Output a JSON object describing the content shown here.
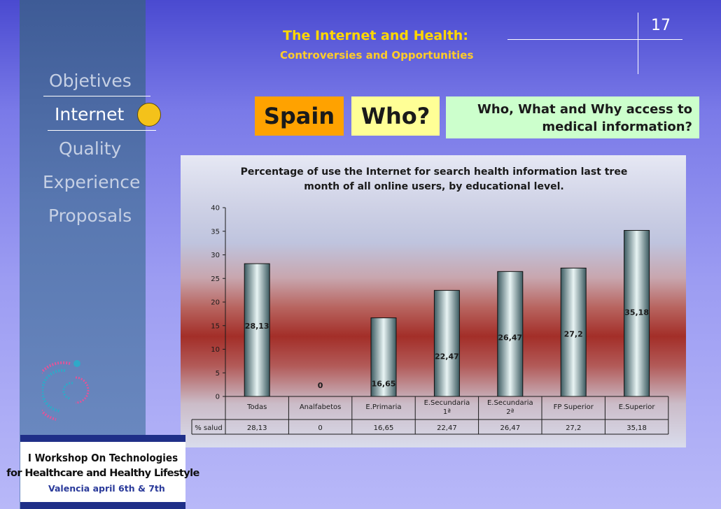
{
  "header": {
    "title": "The Internet and Health:",
    "subtitle": "Controversies and Opportunities",
    "slide_number": "17"
  },
  "sidebar": {
    "items": [
      {
        "label": "Objetives"
      },
      {
        "label": "Internet"
      },
      {
        "label": "Quality"
      },
      {
        "label": "Experience"
      },
      {
        "label": "Proposals"
      }
    ],
    "active_color": "#f4c21a"
  },
  "tags": {
    "spain": "Spain",
    "who": "Who?",
    "question_line1": "Who, What and Why access to",
    "question_line2": "medical information?"
  },
  "workshop": {
    "line1": "I Workshop On Technologies",
    "line2": "for Healthcare and Healthy Lifestyle",
    "line3": "Valencia april 6th & 7th"
  },
  "chart_data": {
    "type": "bar",
    "title_line1": "Percentage of use the Internet for search health information last tree",
    "title_line2": "month of all online users, by educational level.",
    "categories": [
      [
        "Todas"
      ],
      [
        "Analfabetos"
      ],
      [
        "E.Primaria"
      ],
      [
        "E.Secundaria",
        "1ª"
      ],
      [
        "E.Secundaria",
        "2ª"
      ],
      [
        "FP Superior"
      ],
      [
        "E.Superior"
      ]
    ],
    "series": [
      {
        "name": "% salud",
        "values": [
          28.13,
          0,
          16.65,
          22.47,
          26.47,
          27.2,
          35.18
        ],
        "labels": [
          "28,13",
          "0",
          "16,65",
          "22,47",
          "26,47",
          "27,2",
          "35,18"
        ]
      }
    ],
    "ylim": [
      0,
      40
    ],
    "yticks": [
      "0",
      "5",
      "10",
      "15",
      "20",
      "25",
      "30",
      "35",
      "40"
    ],
    "data_table": true,
    "grid": false,
    "legend": "none"
  }
}
